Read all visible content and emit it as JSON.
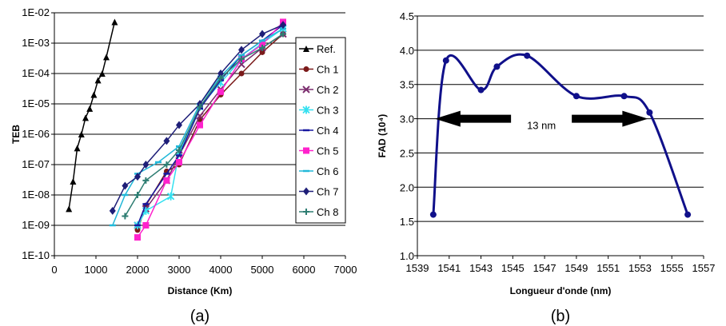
{
  "chart_data": [
    {
      "type": "line",
      "caption": "(a)",
      "xlabel": "Distance (Km)",
      "ylabel": "TEB",
      "x_ticks": [
        "0",
        "1000",
        "2000",
        "3000",
        "4000",
        "5000",
        "6000",
        "7000"
      ],
      "y_ticks": [
        "1E-10",
        "1E-09",
        "1E-08",
        "1E-07",
        "1E-06",
        "1E-05",
        "1E-04",
        "1E-03",
        "1E-02"
      ],
      "xlim": [
        0,
        7000
      ],
      "ylim_log10": [
        -10,
        -2
      ],
      "y_scale": "log",
      "grid": "horizontal",
      "legend_position": "right",
      "series": [
        {
          "name": "Ref.",
          "color": "#000000",
          "marker": "triangle",
          "x": [
            350,
            450,
            550,
            650,
            750,
            850,
            950,
            1050,
            1150,
            1250,
            1450
          ],
          "y": [
            3.5e-09,
            2.8e-08,
            3.5e-07,
            1e-06,
            3.5e-06,
            7e-06,
            2e-05,
            6e-05,
            0.0001,
            0.00035,
            0.005
          ]
        },
        {
          "name": "Ch 1",
          "color": "#7B1A1A",
          "marker": "circle",
          "x": [
            2000,
            2200,
            2700,
            3000,
            3500,
            4000,
            4500,
            5000,
            5500
          ],
          "y": [
            7e-10,
            4.5e-09,
            6e-08,
            1e-07,
            3e-06,
            2e-05,
            0.0001,
            0.0005,
            0.002
          ]
        },
        {
          "name": "Ch 2",
          "color": "#7B2D6E",
          "marker": "x",
          "x": [
            2000,
            2200,
            2700,
            3000,
            3500,
            4000,
            4500,
            5000,
            5500
          ],
          "y": [
            1e-09,
            3.5e-09,
            3e-08,
            2e-07,
            4e-06,
            3e-05,
            0.0002,
            0.0007,
            0.002
          ]
        },
        {
          "name": "Ch 3",
          "color": "#33E0F0",
          "marker": "asterisk",
          "x": [
            2000,
            2200,
            2800,
            3000,
            3500,
            4000,
            4500,
            5000,
            5500
          ],
          "y": [
            1e-09,
            3e-09,
            9e-09,
            2.5e-07,
            8e-06,
            5e-05,
            0.0003,
            0.001,
            0.003
          ]
        },
        {
          "name": "Ch 4",
          "color": "#1818A0",
          "marker": "dash",
          "x": [
            2000,
            2200,
            2700,
            3000,
            3500,
            4000,
            4500,
            5000,
            5500
          ],
          "y": [
            1e-09,
            5e-09,
            5e-08,
            2e-07,
            7e-06,
            6e-05,
            0.0004,
            0.0012,
            0.004
          ]
        },
        {
          "name": "Ch 5",
          "color": "#FF22CC",
          "marker": "square",
          "x": [
            2000,
            2200,
            2700,
            3000,
            3500,
            4000,
            4500,
            5000,
            5500
          ],
          "y": [
            4e-10,
            1e-09,
            3e-08,
            1.2e-07,
            2e-06,
            2.5e-05,
            0.0003,
            0.0009,
            0.005
          ]
        },
        {
          "name": "Ch 6",
          "color": "#22B8D8",
          "marker": "dash",
          "x": [
            1400,
            1700,
            2000,
            2500,
            3000,
            3500,
            4000,
            4500,
            5000,
            5500
          ],
          "y": [
            1e-09,
            1e-08,
            5e-08,
            1.2e-07,
            4e-07,
            1e-05,
            8e-05,
            0.0004,
            0.0012,
            0.003
          ]
        },
        {
          "name": "Ch 7",
          "color": "#1E1E78",
          "marker": "diamond",
          "x": [
            1400,
            1700,
            2000,
            2200,
            2700,
            3000,
            3500,
            4000,
            4500,
            5000,
            5500
          ],
          "y": [
            3e-09,
            2e-08,
            4e-08,
            1e-07,
            6e-07,
            2e-06,
            1e-05,
            0.0001,
            0.0006,
            0.002,
            0.004
          ]
        },
        {
          "name": "Ch 8",
          "color": "#2E7D72",
          "marker": "plus",
          "x": [
            1700,
            2000,
            2200,
            2700,
            3000,
            3500,
            4000,
            4500,
            5000,
            5500
          ],
          "y": [
            2e-09,
            1e-08,
            3e-08,
            1e-07,
            3e-07,
            8e-06,
            7e-05,
            0.0003,
            0.0007,
            0.002
          ]
        }
      ]
    },
    {
      "type": "line",
      "caption": "(b)",
      "xlabel": "Longueur d'onde (nm)",
      "ylabel": "FAD (10⁴)",
      "x_ticks": [
        "1539",
        "1541",
        "1543",
        "1545",
        "1547",
        "1549",
        "1551",
        "1553",
        "1555",
        "1557"
      ],
      "y_ticks": [
        "1.0",
        "1.5",
        "2.0",
        "2.5",
        "3.0",
        "3.5",
        "4.0",
        "4.5"
      ],
      "xlim": [
        1539,
        1557
      ],
      "ylim": [
        1.0,
        4.5
      ],
      "grid": "horizontal",
      "annotation": "13 nm",
      "arrow_y": 3.0,
      "arrow_x": [
        1540.1,
        1553.5
      ],
      "series": [
        {
          "name": "",
          "color": "#10108A",
          "x": [
            1540,
            1540.8,
            1543,
            1544,
            1545.9,
            1549,
            1552,
            1553.6,
            1556
          ],
          "y": [
            1.6,
            3.85,
            3.42,
            3.76,
            3.92,
            3.33,
            3.33,
            3.09,
            1.6
          ]
        }
      ]
    }
  ]
}
